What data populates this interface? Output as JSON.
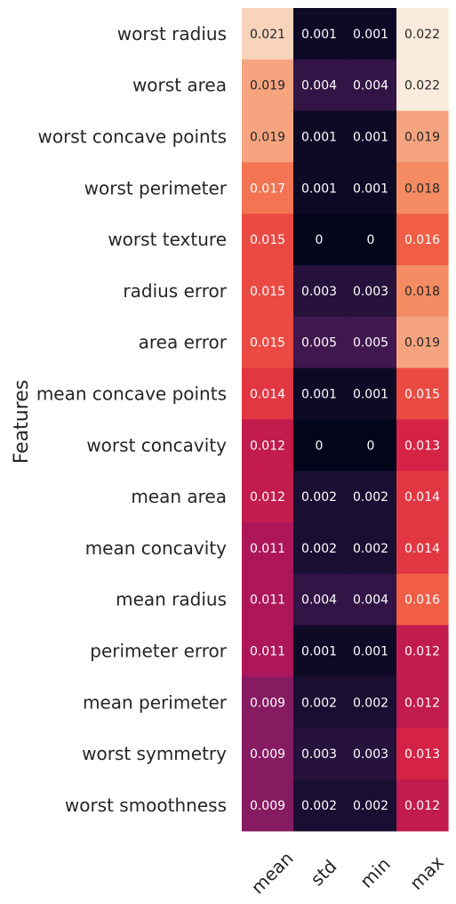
{
  "chart_data": {
    "type": "heatmap",
    "ylabel": "Features",
    "columns": [
      "mean",
      "std",
      "min",
      "max"
    ],
    "rows": [
      "worst radius",
      "worst area",
      "worst concave points",
      "worst perimeter",
      "worst texture",
      "radius error",
      "area error",
      "mean concave points",
      "worst concavity",
      "mean area",
      "mean concavity",
      "mean radius",
      "perimeter error",
      "mean perimeter",
      "worst symmetry",
      "worst smoothness"
    ],
    "values": [
      [
        0.021,
        0.001,
        0.001,
        0.022
      ],
      [
        0.019,
        0.004,
        0.004,
        0.022
      ],
      [
        0.019,
        0.001,
        0.001,
        0.019
      ],
      [
        0.017,
        0.001,
        0.001,
        0.018
      ],
      [
        0.015,
        0,
        0,
        0.016
      ],
      [
        0.015,
        0.003,
        0.003,
        0.018
      ],
      [
        0.015,
        0.005,
        0.005,
        0.019
      ],
      [
        0.014,
        0.001,
        0.001,
        0.015
      ],
      [
        0.012,
        0,
        0,
        0.013
      ],
      [
        0.012,
        0.002,
        0.002,
        0.014
      ],
      [
        0.011,
        0.002,
        0.002,
        0.014
      ],
      [
        0.011,
        0.004,
        0.004,
        0.016
      ],
      [
        0.011,
        0.001,
        0.001,
        0.012
      ],
      [
        0.009,
        0.002,
        0.002,
        0.012
      ],
      [
        0.009,
        0.003,
        0.003,
        0.013
      ],
      [
        0.009,
        0.002,
        0.002,
        0.012
      ]
    ],
    "labels": [
      [
        "0.021",
        "0.001",
        "0.001",
        "0.022"
      ],
      [
        "0.019",
        "0.004",
        "0.004",
        "0.022"
      ],
      [
        "0.019",
        "0.001",
        "0.001",
        "0.019"
      ],
      [
        "0.017",
        "0.001",
        "0.001",
        "0.018"
      ],
      [
        "0.015",
        "0",
        "0",
        "0.016"
      ],
      [
        "0.015",
        "0.003",
        "0.003",
        "0.018"
      ],
      [
        "0.015",
        "0.005",
        "0.005",
        "0.019"
      ],
      [
        "0.014",
        "0.001",
        "0.001",
        "0.015"
      ],
      [
        "0.012",
        "0",
        "0",
        "0.013"
      ],
      [
        "0.012",
        "0.002",
        "0.002",
        "0.014"
      ],
      [
        "0.011",
        "0.002",
        "0.002",
        "0.014"
      ],
      [
        "0.011",
        "0.004",
        "0.004",
        "0.016"
      ],
      [
        "0.011",
        "0.001",
        "0.001",
        "0.012"
      ],
      [
        "0.009",
        "0.002",
        "0.002",
        "0.012"
      ],
      [
        "0.009",
        "0.003",
        "0.003",
        "0.013"
      ],
      [
        "0.009",
        "0.002",
        "0.002",
        "0.012"
      ]
    ],
    "value_range": [
      0,
      0.022
    ],
    "colormap": "rocket",
    "colorbar": false,
    "grid": false
  }
}
